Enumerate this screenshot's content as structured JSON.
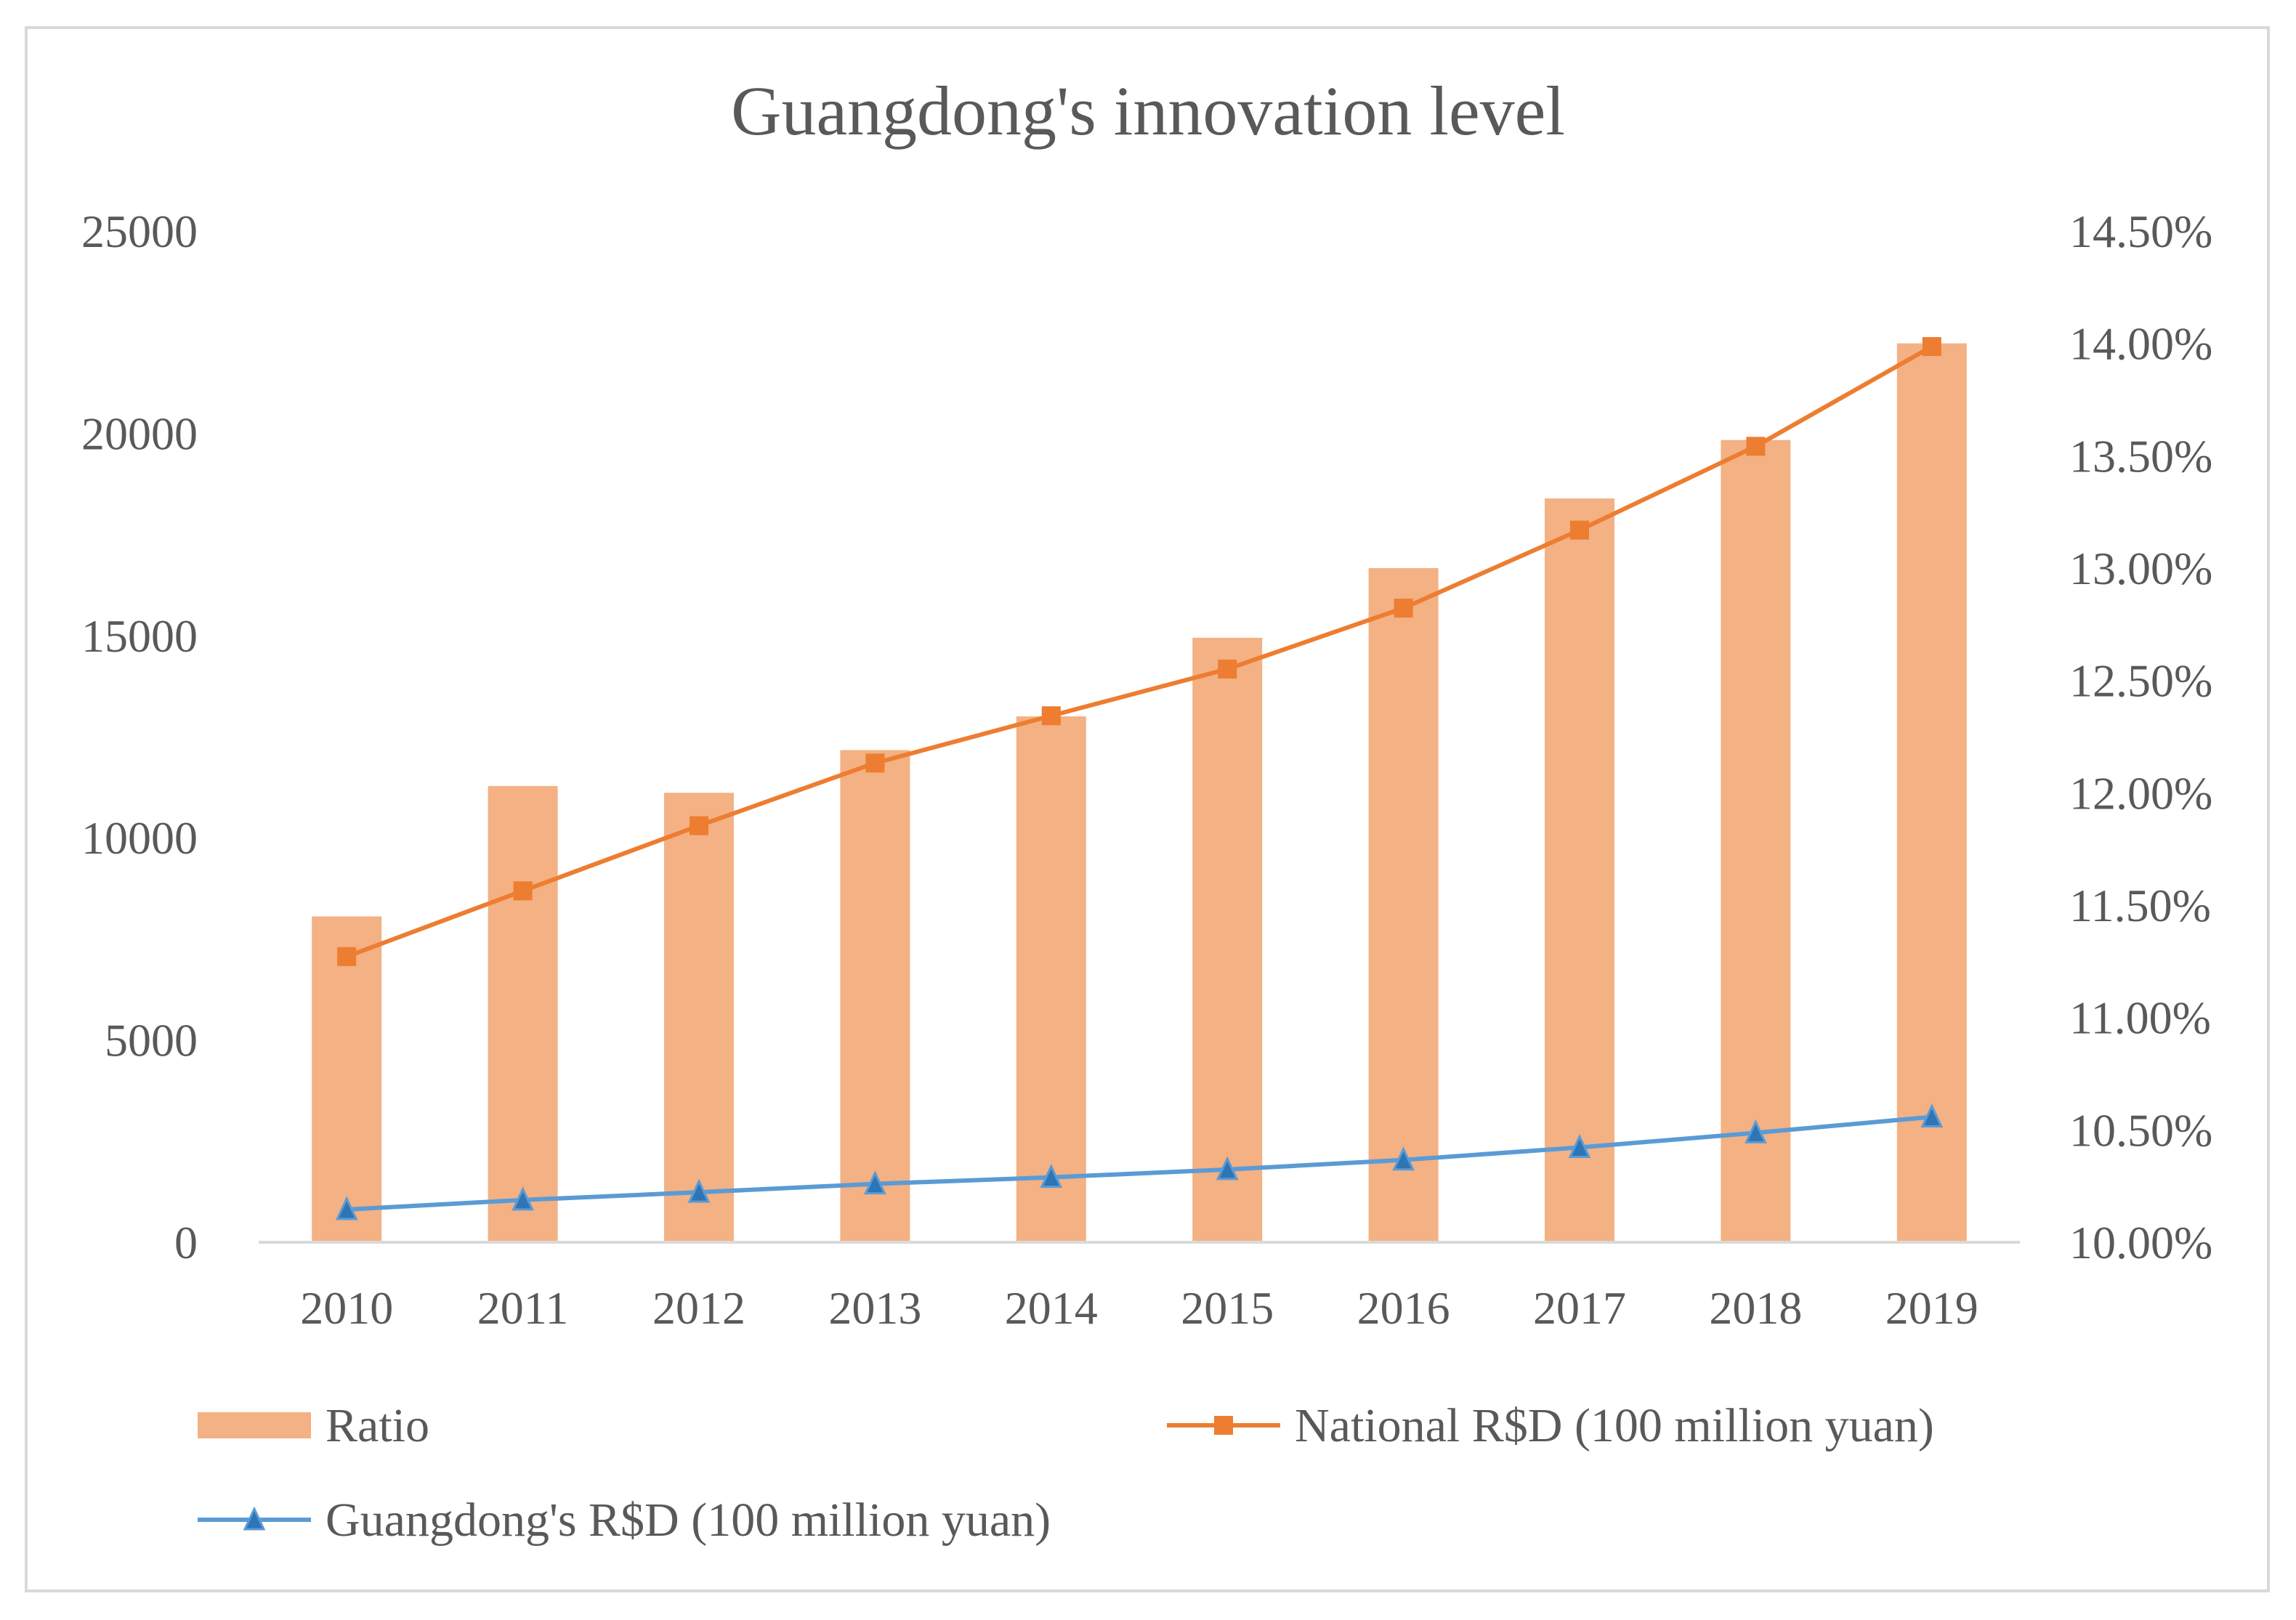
{
  "chart_data": {
    "type": "bar",
    "title": "Guangdong's  innovation level",
    "categories": [
      "2010",
      "2011",
      "2012",
      "2013",
      "2014",
      "2015",
      "2016",
      "2017",
      "2018",
      "2019"
    ],
    "left_axis": {
      "ylim": [
        0,
        25000
      ],
      "ticks": [
        "0",
        "5000",
        "10000",
        "15000",
        "20000",
        "25000"
      ]
    },
    "right_axis": {
      "ylim": [
        0.1,
        0.145
      ],
      "ticks": [
        "10.00%",
        "10.50%",
        "11.00%",
        "11.50%",
        "12.00%",
        "12.50%",
        "13.00%",
        "13.50%",
        "14.00%",
        "14.50%"
      ]
    },
    "series": [
      {
        "name": "Ratio",
        "kind": "bar",
        "axis": "right",
        "color": "#f4b183",
        "values": [
          0.1145,
          0.1203,
          0.12,
          0.1219,
          0.1234,
          0.1269,
          0.13,
          0.1331,
          0.1357,
          0.14
        ]
      },
      {
        "name": "National R$D (100 million yuan)",
        "kind": "line",
        "axis": "left",
        "marker": "square",
        "color": "#ed7d31",
        "values": [
          7062,
          8687,
          10298,
          11847,
          13016,
          14170,
          15677,
          17606,
          19678,
          22144
        ]
      },
      {
        "name": "Guangdong's R$D (100 million yuan)",
        "kind": "line",
        "axis": "left",
        "marker": "triangle",
        "color": "#5b9bd5",
        "values": [
          809,
          1045,
          1236,
          1443,
          1605,
          1798,
          2035,
          2344,
          2705,
          3098
        ]
      }
    ],
    "legend_position": "bottom",
    "grid": false
  }
}
